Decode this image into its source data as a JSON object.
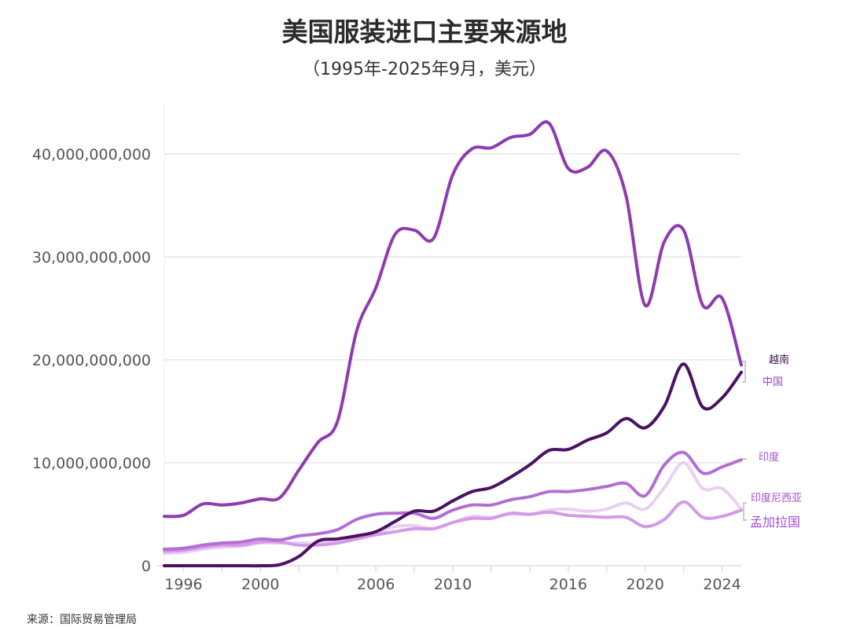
{
  "chart_data": {
    "type": "line",
    "title": "美国服装进口主要来源地",
    "subtitle": "（1995年-2025年9月，美元）",
    "source": "来源：国际贸易管理局",
    "xlabel": "",
    "ylabel": "",
    "x": [
      1995,
      1996,
      1997,
      1998,
      1999,
      2000,
      2001,
      2002,
      2003,
      2004,
      2005,
      2006,
      2007,
      2008,
      2009,
      2010,
      2011,
      2012,
      2013,
      2014,
      2015,
      2016,
      2017,
      2018,
      2019,
      2020,
      2021,
      2022,
      2023,
      2024,
      2025
    ],
    "xlim": [
      1995,
      2025
    ],
    "ylim": [
      0,
      44000000000
    ],
    "x_ticks": [
      1996,
      1998,
      2000,
      2002,
      2004,
      2006,
      2008,
      2010,
      2012,
      2014,
      2016,
      2018,
      2020,
      2022,
      2024
    ],
    "x_tick_labels": [
      "1996",
      "",
      "2000",
      "",
      "",
      "2006",
      "",
      "2010",
      "",
      "",
      "2016",
      "",
      "2020",
      "",
      "2024"
    ],
    "y_ticks": [
      0,
      10000000000,
      20000000000,
      30000000000,
      40000000000
    ],
    "y_tick_labels": [
      "0",
      "10,000,000,000",
      "20,000,000,000",
      "30,000,000,000",
      "40,000,000,000"
    ],
    "grid": "horizontal",
    "legend": "direct labels at right",
    "series": [
      {
        "name": "中国",
        "color": "#8e3bb0",
        "label_color": "#9a44c0",
        "values": [
          4800000000.0,
          4900000000.0,
          6000000000.0,
          5900000000.0,
          6100000000.0,
          6500000000.0,
          6600000000.0,
          9300000000.0,
          12000000000.0,
          14000000000.0,
          22800000000.0,
          27000000000.0,
          32200000000.0,
          32600000000.0,
          31800000000.0,
          38000000000.0,
          40500000000.0,
          40600000000.0,
          41600000000.0,
          41900000000.0,
          43000000000.0,
          38600000000.0,
          38700000000.0,
          40300000000.0,
          36000000000.0,
          25300000000.0,
          31500000000.0,
          32600000000.0,
          25300000000.0,
          26000000000.0,
          19500000000.0
        ]
      },
      {
        "name": "越南",
        "color": "#4a1260",
        "label_color": "#3a1050",
        "values": [
          0,
          0,
          0,
          0,
          0,
          0,
          100000000.0,
          900000000.0,
          2400000000.0,
          2600000000.0,
          2900000000.0,
          3300000000.0,
          4300000000.0,
          5300000000.0,
          5300000000.0,
          6300000000.0,
          7200000000.0,
          7600000000.0,
          8600000000.0,
          9800000000.0,
          11200000000.0,
          11300000000.0,
          12200000000.0,
          12900000000.0,
          14300000000.0,
          13400000000.0,
          15500000000.0,
          19600000000.0,
          15400000000.0,
          16300000000.0,
          18800000000.0
        ]
      },
      {
        "name": "印度",
        "color": "#b36ed6",
        "label_color": "#a24fd0",
        "values": [
          1600000000.0,
          1700000000.0,
          2000000000.0,
          2200000000.0,
          2300000000.0,
          2600000000.0,
          2500000000.0,
          2900000000.0,
          3100000000.0,
          3500000000.0,
          4500000000.0,
          5000000000.0,
          5100000000.0,
          5100000000.0,
          4600000000.0,
          5400000000.0,
          5900000000.0,
          5900000000.0,
          6400000000.0,
          6700000000.0,
          7200000000.0,
          7200000000.0,
          7400000000.0,
          7700000000.0,
          8000000000.0,
          6800000000.0,
          9800000000.0,
          11000000000.0,
          9000000000.0,
          9600000000.0,
          10300000000.0
        ]
      },
      {
        "name": "印度尼西亚",
        "color": "#e9d0f3",
        "label_color": "#a24fd0",
        "values": [
          1200000000.0,
          1300000000.0,
          1600000000.0,
          1800000000.0,
          1900000000.0,
          2200000000.0,
          2200000000.0,
          2200000000.0,
          2200000000.0,
          2400000000.0,
          2800000000.0,
          3200000000.0,
          3800000000.0,
          3900000000.0,
          3600000000.0,
          4200000000.0,
          4800000000.0,
          4700000000.0,
          5000000000.0,
          5000000000.0,
          5400000000.0,
          5500000000.0,
          5300000000.0,
          5500000000.0,
          6100000000.0,
          5500000000.0,
          7600000000.0,
          10000000000.0,
          7500000000.0,
          7500000000.0,
          5500000000.0
        ]
      },
      {
        "name": "孟加拉国",
        "color": "#d49ae6",
        "label_color": "#a24fd0",
        "values": [
          1400000000.0,
          1500000000.0,
          1800000000.0,
          2000000000.0,
          2000000000.0,
          2300000000.0,
          2300000000.0,
          2000000000.0,
          2000000000.0,
          2200000000.0,
          2600000000.0,
          3000000000.0,
          3300000000.0,
          3600000000.0,
          3600000000.0,
          4200000000.0,
          4600000000.0,
          4600000000.0,
          5100000000.0,
          5000000000.0,
          5200000000.0,
          4900000000.0,
          4800000000.0,
          4700000000.0,
          4700000000.0,
          3800000000.0,
          4500000000.0,
          6200000000.0,
          4700000000.0,
          4800000000.0,
          5400000000.0
        ]
      }
    ]
  }
}
